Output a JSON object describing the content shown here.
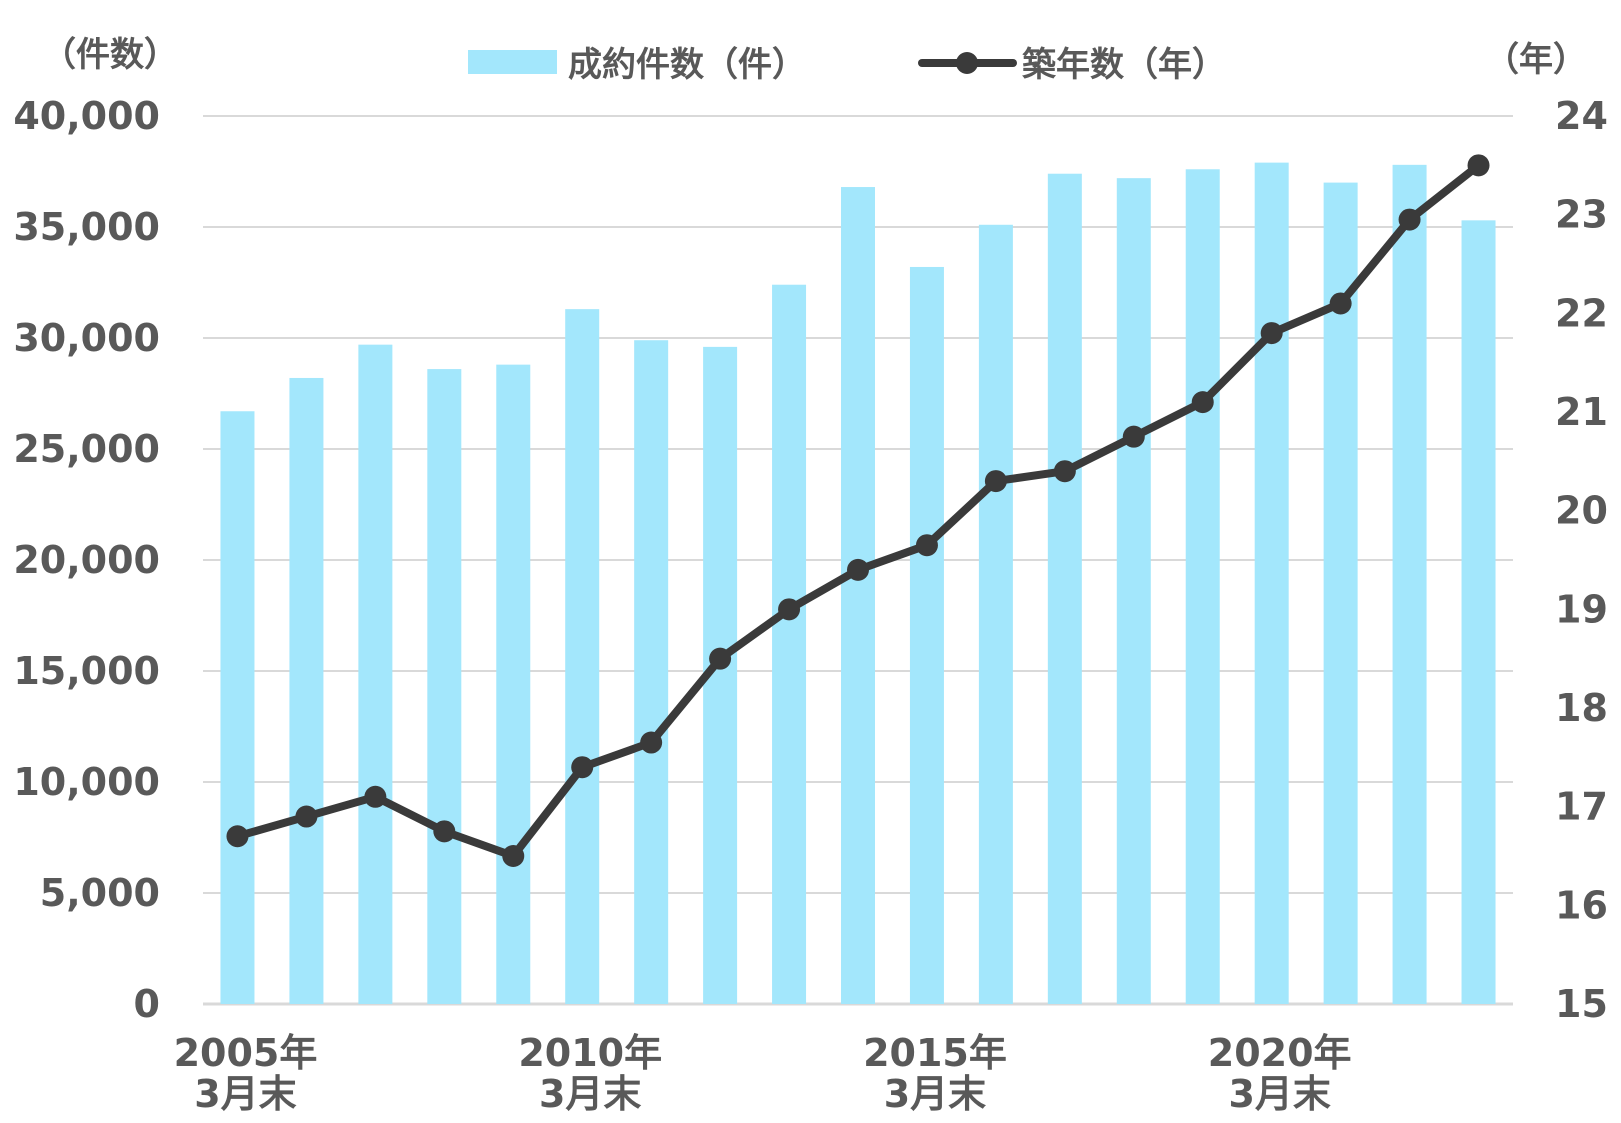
{
  "chart_data": {
    "type": "bar+line",
    "title": "",
    "categories": [
      "2005",
      "2006",
      "2007",
      "2008",
      "2009",
      "2010",
      "2011",
      "2012",
      "2013",
      "2014",
      "2015",
      "2016",
      "2017",
      "2018",
      "2019",
      "2020",
      "2021",
      "2022",
      "2023"
    ],
    "x_tick_labels": [
      {
        "index": 0,
        "line1": "2005年",
        "line2": "3月末"
      },
      {
        "index": 5,
        "line1": "2010年",
        "line2": "3月末"
      },
      {
        "index": 10,
        "line1": "2015年",
        "line2": "3月末"
      },
      {
        "index": 15,
        "line1": "2020年",
        "line2": "3月末"
      }
    ],
    "left_axis": {
      "unit_label": "（件数）",
      "ylim": [
        0,
        40000
      ],
      "ticks": [
        0,
        5000,
        10000,
        15000,
        20000,
        25000,
        30000,
        35000,
        40000
      ],
      "tick_labels": [
        "0",
        "5,000",
        "10,000",
        "15,000",
        "20,000",
        "25,000",
        "30,000",
        "35,000",
        "40,000"
      ]
    },
    "right_axis": {
      "unit_label": "（年）",
      "ylim": [
        15,
        24
      ],
      "ticks": [
        15,
        16,
        17,
        18,
        19,
        20,
        21,
        22,
        23,
        24
      ],
      "tick_labels": [
        "15",
        "16",
        "17",
        "18",
        "19",
        "20",
        "21",
        "22",
        "23",
        "24"
      ]
    },
    "series": [
      {
        "name": "成約件数（件）",
        "type": "bar",
        "axis": "left",
        "color": "#A3E7FC",
        "values": [
          26700,
          28200,
          29700,
          28600,
          28800,
          31300,
          29900,
          29600,
          32400,
          36800,
          33200,
          35100,
          37400,
          37200,
          37600,
          37900,
          37000,
          37800,
          35300
        ]
      },
      {
        "name": "築年数（年）",
        "type": "line",
        "axis": "right",
        "color": "#3A3A3A",
        "values": [
          16.7,
          16.9,
          17.1,
          16.75,
          16.5,
          17.4,
          17.65,
          18.5,
          19.0,
          19.4,
          19.65,
          20.3,
          20.4,
          20.75,
          21.1,
          21.8,
          22.1,
          22.95,
          23.5
        ]
      }
    ],
    "grid": true,
    "legend": "top-center"
  }
}
